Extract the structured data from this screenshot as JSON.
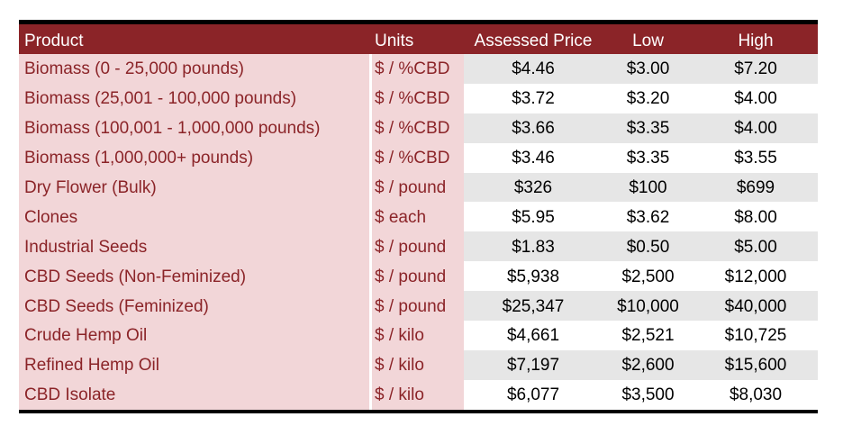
{
  "headers": [
    "Product",
    "Units",
    "Assessed Price",
    "Low",
    "High"
  ],
  "rows": [
    {
      "product": "Biomass (0 - 25,000 pounds)",
      "units": "$ / %CBD",
      "price": "$4.46",
      "low": "$3.00",
      "high": "$7.20"
    },
    {
      "product": "Biomass (25,001 - 100,000 pounds)",
      "units": "$ / %CBD",
      "price": "$3.72",
      "low": "$3.20",
      "high": "$4.00"
    },
    {
      "product": "Biomass (100,001 - 1,000,000 pounds)",
      "units": "$ / %CBD",
      "price": "$3.66",
      "low": "$3.35",
      "high": "$4.00"
    },
    {
      "product": "Biomass (1,000,000+ pounds)",
      "units": "$ / %CBD",
      "price": "$3.46",
      "low": "$3.35",
      "high": "$3.55"
    },
    {
      "product": "Dry Flower (Bulk)",
      "units": "$ / pound",
      "price": "$326",
      "low": "$100",
      "high": "$699"
    },
    {
      "product": "Clones",
      "units": "$ each",
      "price": "$5.95",
      "low": "$3.62",
      "high": "$8.00"
    },
    {
      "product": "Industrial Seeds",
      "units": "$ / pound",
      "price": "$1.83",
      "low": "$0.50",
      "high": "$5.00"
    },
    {
      "product": "CBD Seeds (Non-Feminized)",
      "units": "$ / pound",
      "price": "$5,938",
      "low": "$2,500",
      "high": "$12,000"
    },
    {
      "product": "CBD Seeds (Feminized)",
      "units": "$ / pound",
      "price": "$25,347",
      "low": "$10,000",
      "high": "$40,000"
    },
    {
      "product": "Crude Hemp Oil",
      "units": "$ / kilo",
      "price": "$4,661",
      "low": "$2,521",
      "high": "$10,725"
    },
    {
      "product": "Refined Hemp Oil",
      "units": "$ / kilo",
      "price": "$7,197",
      "low": "$2,600",
      "high": "$15,600"
    },
    {
      "product": "CBD Isolate",
      "units": "$ / kilo",
      "price": "$6,077",
      "low": "$3,500",
      "high": "$8,030"
    }
  ],
  "colors": {
    "header_bg": "#8b2428",
    "label_bg": "#f2d6d8",
    "label_text": "#8b2428",
    "stripe_bg": "#e6e6e6"
  }
}
